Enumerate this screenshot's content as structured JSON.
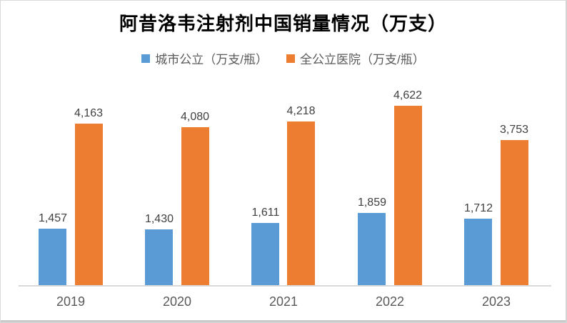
{
  "chart": {
    "title": "阿昔洛韦注射剂中国销量情况（万支）",
    "background_color": "#FFFFFF",
    "frame_border_color": "#D9D9D9",
    "axis_line_color": "#D9D9D9",
    "value_label_color": "#404040",
    "category_label_color": "#595959"
  },
  "chart_data": {
    "type": "bar",
    "title": "阿昔洛韦注射剂中国销量情况（万支）",
    "categories": [
      "2019",
      "2020",
      "2021",
      "2022",
      "2023"
    ],
    "series": [
      {
        "name": "城市公立（万支/瓶）",
        "color": "#5B9BD5",
        "values": [
          1457,
          1430,
          1611,
          1859,
          1712
        ],
        "labels": [
          "1,457",
          "1,430",
          "1,611",
          "1,859",
          "1,712"
        ]
      },
      {
        "name": "全公立医院（万支/瓶）",
        "color": "#ED7D31",
        "values": [
          4163,
          4080,
          4218,
          4622,
          3753
        ],
        "labels": [
          "4,163",
          "4,080",
          "4,218",
          "4,622",
          "3,753"
        ]
      }
    ],
    "xlabel": "",
    "ylabel": "",
    "ylim": [
      0,
      5000
    ],
    "grid": false,
    "y_axis_visible": false,
    "legend_position": "top",
    "data_labels": "above-bars"
  }
}
